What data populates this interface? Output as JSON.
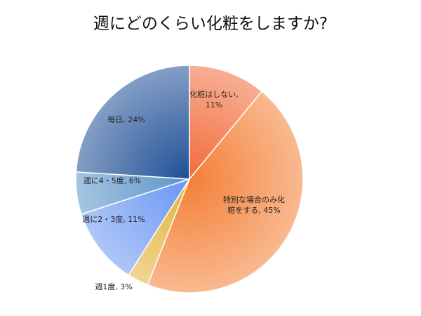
{
  "chart_data": {
    "type": "pie",
    "title": "週にどのくらい化粧をしますか?",
    "slices": [
      {
        "label_lines": [
          "化粧はしない,",
          "11%"
        ],
        "value": 11,
        "color": "#f26b3a",
        "label_color": "#222222"
      },
      {
        "label_lines": [
          "特別な場合のみ化",
          "粧をする, 45%"
        ],
        "value": 45,
        "color": "#f47f36",
        "label_color": "#222222"
      },
      {
        "label_lines": [
          "週1度, 3%"
        ],
        "value": 3,
        "color": "#e3b23a",
        "label_color": "#222222"
      },
      {
        "label_lines": [
          "週に2・3度, 11%"
        ],
        "value": 11,
        "color": "#6a97f2",
        "label_color": "#222222"
      },
      {
        "label_lines": [
          "週に4・5度, 6%"
        ],
        "value": 6,
        "color": "#5c95c9",
        "label_color": "#222222"
      },
      {
        "label_lines": [
          "毎日, 24%"
        ],
        "value": 24,
        "color": "#1f4f96",
        "label_color": "#222222"
      }
    ]
  }
}
